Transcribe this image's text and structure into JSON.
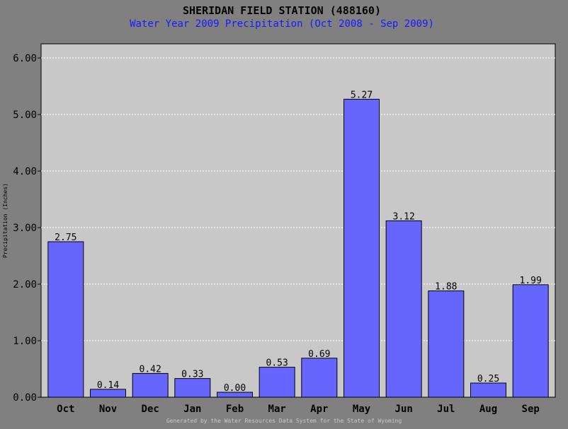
{
  "chart_data": {
    "type": "bar",
    "title": "SHERIDAN FIELD STATION (488160)",
    "subtitle": "Water Year 2009 Precipitation (Oct 2008 - Sep 2009)",
    "ylabel": "Precipitation (Inches)",
    "xlabel": "",
    "categories": [
      "Oct",
      "Nov",
      "Dec",
      "Jan",
      "Feb",
      "Mar",
      "Apr",
      "May",
      "Jun",
      "Jul",
      "Aug",
      "Sep"
    ],
    "values": [
      2.75,
      0.14,
      0.42,
      0.33,
      0.0,
      0.53,
      0.69,
      5.27,
      3.12,
      1.88,
      0.25,
      1.99
    ],
    "value_labels": [
      "2.75",
      "0.14",
      "0.42",
      "0.33",
      "0.00",
      "0.53",
      "0.69",
      "5.27",
      "3.12",
      "1.88",
      "0.25",
      "1.99"
    ],
    "ylim": [
      0,
      6.0
    ],
    "yticks": [
      "0.00",
      "1.00",
      "2.00",
      "3.00",
      "4.00",
      "5.00",
      "6.00"
    ],
    "grid": true,
    "colors": {
      "bar": "#6666ff",
      "plot_bg": "#c8c8c8",
      "page_bg": "#808080",
      "subtitle": "#1a1aff"
    },
    "footer": "Generated by the Water Resources Data System for the State of Wyoming"
  }
}
